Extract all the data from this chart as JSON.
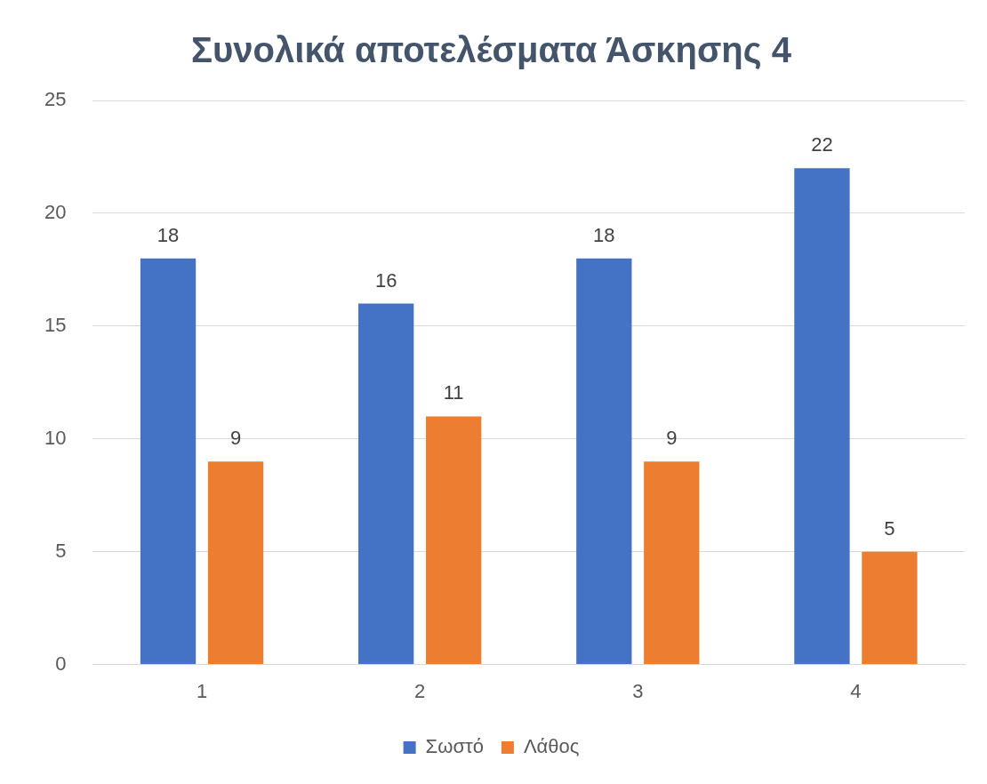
{
  "chart_data": {
    "type": "bar",
    "title": "Συνολικά αποτελέσματα Άσκησης 4",
    "categories": [
      "1",
      "2",
      "3",
      "4"
    ],
    "series": [
      {
        "name": "Σωστό",
        "color": "#4472c4",
        "values": [
          18,
          16,
          18,
          22
        ]
      },
      {
        "name": "Λάθος",
        "color": "#ed7d31",
        "values": [
          9,
          11,
          9,
          5
        ]
      }
    ],
    "ylim": [
      0,
      25
    ],
    "yticks": [
      0,
      5,
      10,
      15,
      20,
      25
    ],
    "grid": "y",
    "legend": "bottom",
    "data_labels": true
  }
}
